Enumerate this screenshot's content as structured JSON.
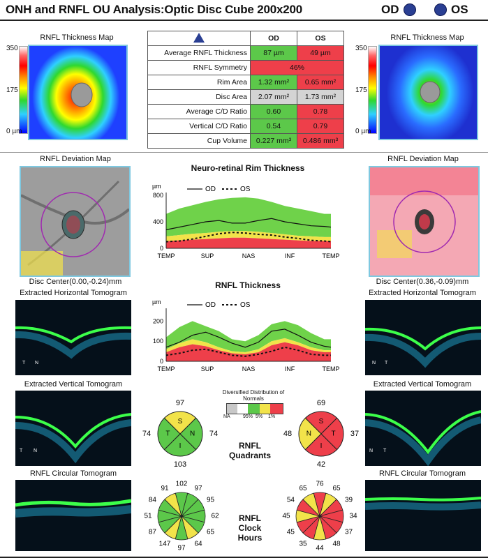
{
  "header": {
    "title": "ONH and RNFL OU Analysis:Optic Disc Cube 200x200",
    "od_label": "OD",
    "os_label": "OS"
  },
  "maps": {
    "thickness_title": "RNFL Thickness Map",
    "scale": [
      "350",
      "175",
      "0 µm"
    ],
    "deviation_title": "RNFL Deviation Map",
    "od_disc_center": "Disc Center(0.00,-0.24)mm",
    "os_disc_center": "Disc Center(0.36,-0.09)mm"
  },
  "tomograms": {
    "horizontal": "Extracted Horizontal Tomogram",
    "vertical": "Extracted Vertical Tomogram",
    "circular": "RNFL Circular Tomogram"
  },
  "table": {
    "col_od": "OD",
    "col_os": "OS",
    "rows": [
      {
        "label": "Average RNFL Thickness",
        "od": "87 µm",
        "os": "49 µm",
        "od_c": "g",
        "os_c": "r"
      },
      {
        "label": "RNFL Symmetry",
        "merged": "46%",
        "c": "r"
      },
      {
        "label": "Rim Area",
        "od": "1.32 mm²",
        "os": "0.65 mm²",
        "od_c": "g",
        "os_c": "r"
      },
      {
        "label": "Disc Area",
        "od": "2.07 mm²",
        "os": "1.73 mm²",
        "od_c": "gr",
        "os_c": "gr"
      },
      {
        "label": "Average C/D Ratio",
        "od": "0.60",
        "os": "0.78",
        "od_c": "g",
        "os_c": "r"
      },
      {
        "label": "Vertical C/D Ratio",
        "od": "0.54",
        "os": "0.79",
        "od_c": "g",
        "os_c": "r"
      },
      {
        "label": "Cup Volume",
        "od": "0.227 mm³",
        "os": "0.486 mm³",
        "od_c": "g",
        "os_c": "r"
      }
    ]
  },
  "chart_data": [
    {
      "type": "line",
      "title": "Neuro-retinal Rim Thickness",
      "ylabel": "µm",
      "ylim": [
        0,
        800
      ],
      "yticks": [
        "800",
        "400",
        "0"
      ],
      "categories": [
        "TEMP",
        "SUP",
        "NAS",
        "INF",
        "TEMP"
      ],
      "legend_od": "OD",
      "legend_os": "OS",
      "x": [
        0,
        8,
        16,
        24,
        32,
        40,
        48,
        56,
        64,
        72,
        80,
        88,
        96,
        100
      ],
      "normal_upper": [
        520,
        600,
        650,
        700,
        740,
        760,
        770,
        750,
        700,
        640,
        600,
        560,
        520,
        520
      ],
      "normal_p5": [
        180,
        200,
        220,
        230,
        250,
        260,
        260,
        250,
        230,
        210,
        190,
        180,
        170,
        170
      ],
      "normal_p1": [
        110,
        120,
        130,
        140,
        150,
        160,
        160,
        150,
        140,
        130,
        120,
        110,
        110,
        110
      ],
      "series": [
        {
          "name": "OD",
          "values": [
            280,
            320,
            360,
            400,
            420,
            380,
            380,
            420,
            450,
            400,
            370,
            340,
            330,
            320
          ]
        },
        {
          "name": "OS",
          "values": [
            100,
            110,
            140,
            180,
            220,
            240,
            230,
            210,
            200,
            170,
            150,
            120,
            110,
            100
          ]
        }
      ]
    },
    {
      "type": "line",
      "title": "RNFL Thickness",
      "ylabel": "µm",
      "ylim": [
        0,
        250
      ],
      "yticks": [
        "200",
        "100",
        "0"
      ],
      "categories": [
        "TEMP",
        "SUP",
        "NAS",
        "INF",
        "TEMP"
      ],
      "legend_od": "OD",
      "legend_os": "OS",
      "x": [
        0,
        8,
        16,
        24,
        32,
        40,
        48,
        56,
        64,
        72,
        80,
        88,
        96,
        100
      ],
      "normal_upper": [
        120,
        170,
        200,
        175,
        150,
        110,
        100,
        130,
        185,
        200,
        180,
        140,
        110,
        110
      ],
      "normal_p5": [
        60,
        90,
        110,
        95,
        70,
        50,
        45,
        60,
        100,
        115,
        95,
        70,
        55,
        55
      ],
      "normal_p1": [
        45,
        70,
        85,
        75,
        55,
        40,
        35,
        45,
        80,
        95,
        80,
        55,
        45,
        45
      ],
      "series": [
        {
          "name": "OD",
          "values": [
            70,
            95,
            130,
            145,
            120,
            90,
            70,
            95,
            150,
            160,
            130,
            95,
            75,
            70
          ]
        },
        {
          "name": "OS",
          "values": [
            30,
            40,
            55,
            60,
            45,
            30,
            25,
            35,
            50,
            70,
            55,
            35,
            30,
            30
          ]
        }
      ]
    }
  ],
  "normals_legend": {
    "title": "Diversified Distribution of Normals",
    "labels": [
      "NA",
      "95%",
      "5%",
      "1%"
    ]
  },
  "quadrants": {
    "title": "RNFL Quadrants",
    "od": {
      "S": "97",
      "N": "74",
      "I": "103",
      "T": "74",
      "letters": [
        "S",
        "N",
        "I",
        "T"
      ],
      "colors": [
        "#f2e34a",
        "#5cc84a",
        "#5cc84a",
        "#5cc84a"
      ]
    },
    "os": {
      "S": "69",
      "T": "37",
      "I": "42",
      "N": "48",
      "letters": [
        "S",
        "T",
        "I",
        "N"
      ],
      "colors": [
        "#ee3f4a",
        "#ee3f4a",
        "#ee3f4a",
        "#f2e34a"
      ]
    }
  },
  "clock_hours": {
    "title": "RNFL Clock Hours",
    "od": {
      "values": [
        "102",
        "97",
        "95",
        "62",
        "65",
        "64",
        "97",
        "147",
        "87",
        "51",
        "84",
        "91"
      ],
      "colors": [
        "#5cc84a",
        "#5cc84a",
        "#5cc84a",
        "#5cc84a",
        "#5cc84a",
        "#f2e34a",
        "#5cc84a",
        "#f2e34a",
        "#5cc84a",
        "#5cc84a",
        "#5cc84a",
        "#f2e34a"
      ]
    },
    "os": {
      "values": [
        "76",
        "65",
        "39",
        "34",
        "37",
        "48",
        "44",
        "35",
        "45",
        "45",
        "54",
        "65"
      ],
      "colors": [
        "#ee3f4a",
        "#f2e34a",
        "#ee3f4a",
        "#ee3f4a",
        "#ee3f4a",
        "#ee3f4a",
        "#f2e34a",
        "#ee3f4a",
        "#ee3f4a",
        "#f2e34a",
        "#ee3f4a",
        "#f2e34a"
      ]
    }
  }
}
